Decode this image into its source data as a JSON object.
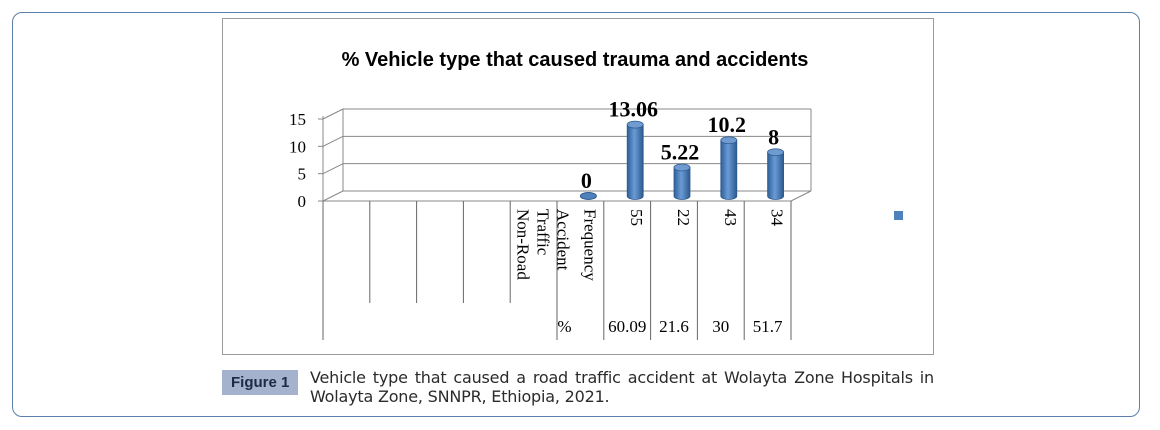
{
  "figure": {
    "label": "Figure 1",
    "caption": "Vehicle type that caused a road traffic accident at Wolayta Zone Hospitals in Wolayta Zone, SNNPR, Ethiopia, 2021."
  },
  "chart_data": {
    "type": "bar",
    "title": "% Vehicle type that caused trauma and accidents",
    "ylim": [
      0,
      15
    ],
    "yticks": [
      "0",
      "5",
      "10",
      "15"
    ],
    "grid": true,
    "categories": [
      "Non-Road Traffic Accident",
      "Frequency",
      "55",
      "22",
      "43",
      "34"
    ],
    "category_labels": [
      [
        "Non-Road",
        "Traffic",
        "Accident"
      ],
      [
        "Frequency"
      ],
      [
        "55"
      ],
      [
        "22"
      ],
      [
        "43"
      ],
      [
        "34"
      ]
    ],
    "values": [
      null,
      0,
      13.06,
      5.22,
      10.2,
      8
    ],
    "data_labels": [
      "",
      "0",
      "13.06",
      "5.22",
      "10.2",
      "8"
    ],
    "table_row": {
      "header": "%",
      "values": [
        "60.09",
        "21.6",
        "30",
        "51.7"
      ]
    },
    "bar_color": "#4f81bd",
    "legend_color": "#4f81bd"
  }
}
